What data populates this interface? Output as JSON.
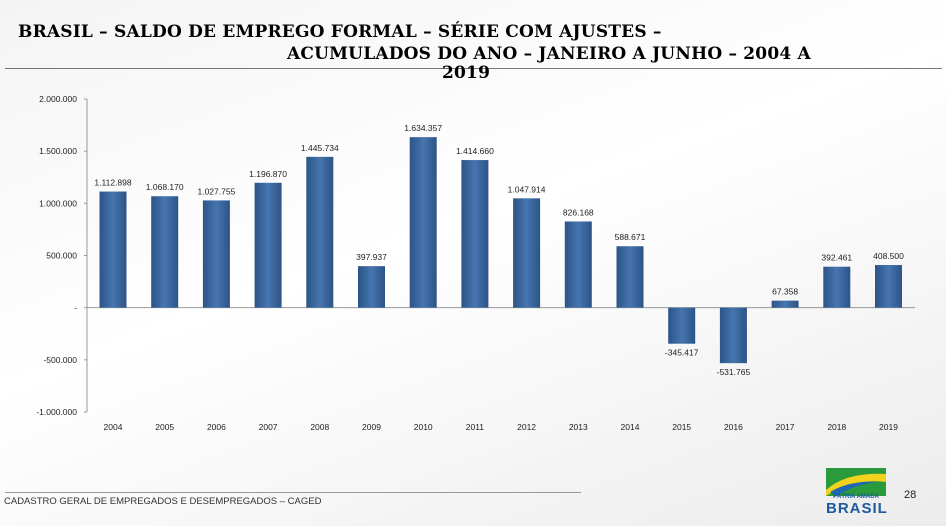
{
  "title": {
    "line1": "BRASIL – SALDO DE EMPREGO FORMAL – SÉRIE COM AJUSTES –",
    "line2": "ACUMULADOS DO ANO – JANEIRO A JUNHO – 2004 A",
    "line3": "2019"
  },
  "footer": {
    "source": "CADASTRO GERAL DE EMPREGADOS E DESEMPREGADOS – CAGED",
    "page": "28"
  },
  "logo": {
    "line1": "PÁTRIA AMADA",
    "line2": "BRASIL"
  },
  "colors": {
    "bar": "#3b6aa3",
    "bar_dark": "#2a4f7e"
  },
  "chart_data": {
    "type": "bar",
    "title": "BRASIL – SALDO DE EMPREGO FORMAL – SÉRIE COM AJUSTES – ACUMULADOS DO ANO – JANEIRO A JUNHO – 2004 A 2019",
    "categories": [
      "2004",
      "2005",
      "2006",
      "2007",
      "2008",
      "2009",
      "2010",
      "2011",
      "2012",
      "2013",
      "2014",
      "2015",
      "2016",
      "2017",
      "2018",
      "2019"
    ],
    "values": [
      1112898,
      1068170,
      1027755,
      1196870,
      1445734,
      397937,
      1634357,
      1414660,
      1047914,
      826168,
      588671,
      -345417,
      -531765,
      67358,
      392461,
      408500
    ],
    "data_labels": [
      "1.112.898",
      "1.068.170",
      "1.027.755",
      "1.196.870",
      "1.445.734",
      "397.937",
      "1.634.357",
      "1.414.660",
      "1.047.914",
      "826.168",
      "588.671",
      "-345.417",
      "-531.765",
      "67.358",
      "392.461",
      "408.500"
    ],
    "ylim": [
      -1000000,
      2000000
    ],
    "yticks": [
      2000000,
      1500000,
      1000000,
      500000,
      0,
      -500000,
      -1000000
    ],
    "ytick_labels": [
      "2.000.000",
      "1.500.000",
      "1.000.000",
      "500.000",
      "-",
      "-500.000",
      "-1.000.000"
    ],
    "xlabel": "",
    "ylabel": "",
    "grid": false,
    "legend": "none"
  }
}
